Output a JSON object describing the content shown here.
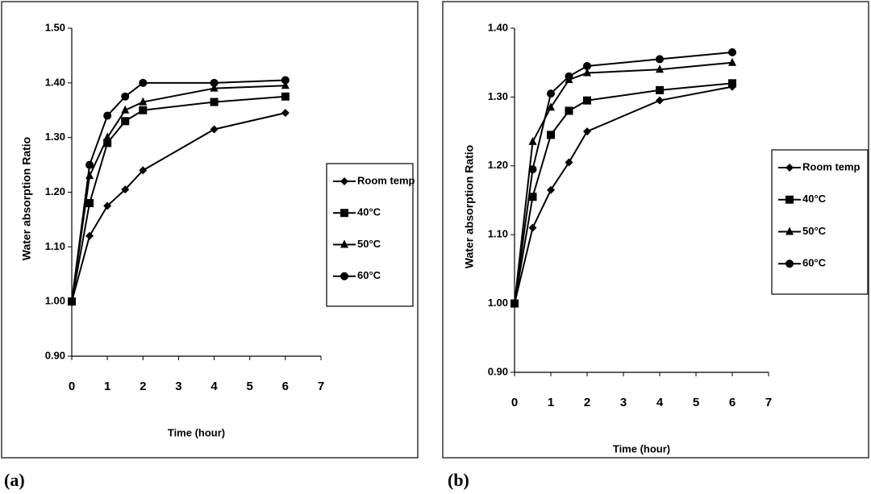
{
  "chart_data": [
    {
      "type": "line",
      "caption": "(a)",
      "x_label": "Time (hour)",
      "y_label": "Water absorption Ratio",
      "x": [
        0,
        0.5,
        1,
        1.5,
        2,
        4,
        6
      ],
      "xlim": [
        0,
        7
      ],
      "xticks": [
        0,
        1,
        2,
        3,
        4,
        5,
        6,
        7
      ],
      "ylim": [
        0.9,
        1.5
      ],
      "yticks": [
        {
          "value": 0.9,
          "label": "0.90"
        },
        {
          "value": 1.0,
          "label": "1.00"
        },
        {
          "value": 1.1,
          "label": "1.10"
        },
        {
          "value": 1.2,
          "label": "1.20"
        },
        {
          "value": 1.3,
          "label": "1.30"
        },
        {
          "value": 1.4,
          "label": "1.40"
        },
        {
          "value": 1.5,
          "label": "1.50"
        }
      ],
      "grid": false,
      "legend": "right",
      "series": [
        {
          "name": "Room temp",
          "color": "#000000",
          "marker": "diamond",
          "values": [
            1.0,
            1.12,
            1.175,
            1.205,
            1.24,
            1.315,
            1.345
          ]
        },
        {
          "name": "40°C",
          "color": "#000000",
          "marker": "square",
          "values": [
            1.0,
            1.18,
            1.29,
            1.33,
            1.35,
            1.365,
            1.375
          ]
        },
        {
          "name": "50°C",
          "color": "#000000",
          "marker": "triangle",
          "values": [
            1.0,
            1.23,
            1.3,
            1.35,
            1.365,
            1.39,
            1.395
          ]
        },
        {
          "name": "60°C",
          "color": "#000000",
          "marker": "circle",
          "values": [
            1.0,
            1.25,
            1.34,
            1.375,
            1.4,
            1.4,
            1.405
          ]
        }
      ]
    },
    {
      "type": "line",
      "caption": "(b)",
      "x_label": "Time (hour)",
      "y_label": "Water absorption Ratio",
      "x": [
        0,
        0.5,
        1,
        1.5,
        2,
        4,
        6
      ],
      "xlim": [
        0,
        7
      ],
      "xticks": [
        0,
        1,
        2,
        3,
        4,
        5,
        6,
        7
      ],
      "ylim": [
        0.9,
        1.4
      ],
      "yticks": [
        {
          "value": 0.9,
          "label": "0.90"
        },
        {
          "value": 1.0,
          "label": "1.00"
        },
        {
          "value": 1.1,
          "label": "1.10"
        },
        {
          "value": 1.2,
          "label": "1.20"
        },
        {
          "value": 1.3,
          "label": "1.30"
        },
        {
          "value": 1.4,
          "label": "1.40"
        }
      ],
      "grid": false,
      "legend": "right",
      "series": [
        {
          "name": "Room temp",
          "color": "#000000",
          "marker": "diamond",
          "values": [
            1.0,
            1.11,
            1.165,
            1.205,
            1.25,
            1.295,
            1.315
          ]
        },
        {
          "name": "40°C",
          "color": "#000000",
          "marker": "square",
          "values": [
            1.0,
            1.155,
            1.245,
            1.28,
            1.295,
            1.31,
            1.32
          ]
        },
        {
          "name": "50°C",
          "color": "#000000",
          "marker": "triangle",
          "values": [
            1.0,
            1.235,
            1.285,
            1.325,
            1.335,
            1.34,
            1.35
          ]
        },
        {
          "name": "60°C",
          "color": "#000000",
          "marker": "circle",
          "values": [
            1.0,
            1.195,
            1.305,
            1.33,
            1.345,
            1.355,
            1.365
          ]
        }
      ]
    }
  ]
}
